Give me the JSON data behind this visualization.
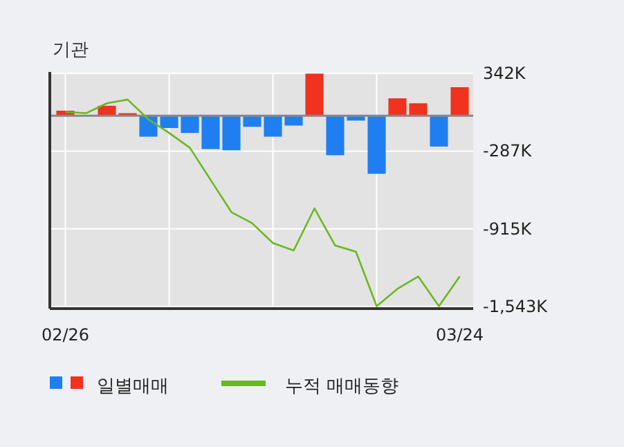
{
  "chart_data": {
    "type": "bar",
    "title": "기관",
    "categories": [
      "02/26",
      null,
      null,
      null,
      null,
      null,
      null,
      null,
      null,
      null,
      null,
      null,
      null,
      null,
      null,
      null,
      null,
      null,
      null,
      "03/24"
    ],
    "series": [
      {
        "name": "일별매매",
        "colors": [
          "#f0321e",
          "#f0321e",
          "#f0321e",
          "#f0321e",
          "#1f7ff0",
          "#1f7ff0",
          "#1f7ff0",
          "#1f7ff0",
          "#1f7ff0",
          "#1f7ff0",
          "#1f7ff0",
          "#1f7ff0",
          "#f0321e",
          "#1f7ff0",
          "#1f7ff0",
          "#1f7ff0",
          "#f0321e",
          "#f0321e",
          "#1f7ff0",
          "#f0321e"
        ],
        "values": [
          40,
          0,
          80,
          20,
          -170,
          -100,
          -140,
          -270,
          -280,
          -90,
          -170,
          -80,
          340,
          -320,
          -40,
          -470,
          140,
          100,
          -250,
          230
        ]
      },
      {
        "name": "누적 매매동향",
        "type": "line",
        "color": "#6ab820",
        "values": [
          30,
          20,
          100,
          130,
          -30,
          -140,
          -260,
          -520,
          -780,
          -870,
          -1030,
          -1090,
          -750,
          -1050,
          -1100,
          -1540,
          -1400,
          -1300,
          -1540,
          -1300
        ]
      }
    ],
    "ylim": [
      -1560,
      342
    ],
    "yticks": [
      {
        "value": 342,
        "label": "342K"
      },
      {
        "value": -287,
        "label": "-287K"
      },
      {
        "value": -915,
        "label": "-915K"
      },
      {
        "value": -1543,
        "label": "-1,543K"
      }
    ],
    "grid": true,
    "legend": "bottom"
  }
}
